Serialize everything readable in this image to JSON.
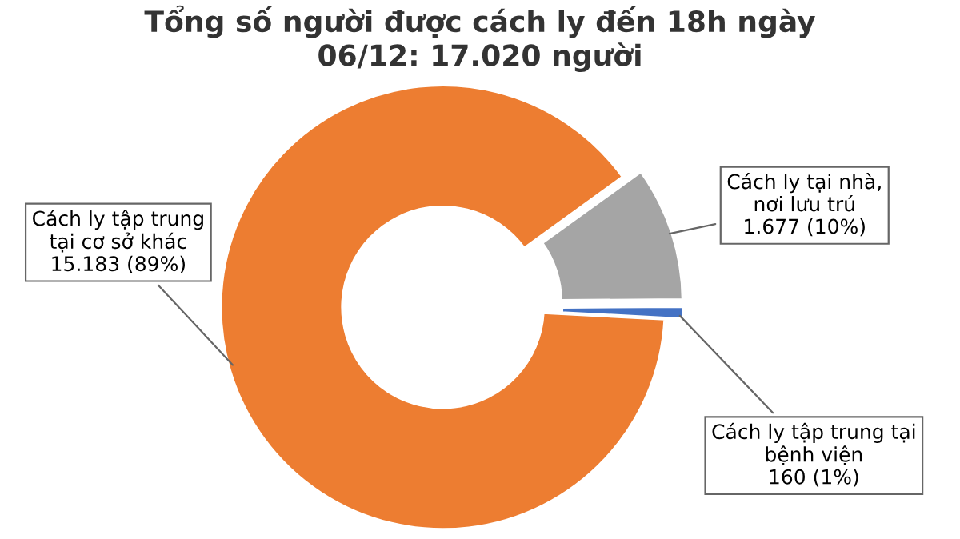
{
  "chart_data": {
    "type": "donut",
    "title": "Tổng số người được cách ly đến 18h ngày\n06/12: 17.020 người",
    "categories": [
      "Cách ly tập trung\ntại cơ sở khác",
      "Cách ly tại nhà,\nnơi lưu trú",
      "Cách ly tập trung tại\nbệnh viện"
    ],
    "values": [
      15183,
      1677,
      160
    ],
    "colors": [
      "#ed7d31",
      "#a5a5a5",
      "#4472c4"
    ],
    "value_labels": [
      "15.183 (89%)",
      "1.677 (10%)",
      "160 (1%)"
    ],
    "legend": false
  }
}
